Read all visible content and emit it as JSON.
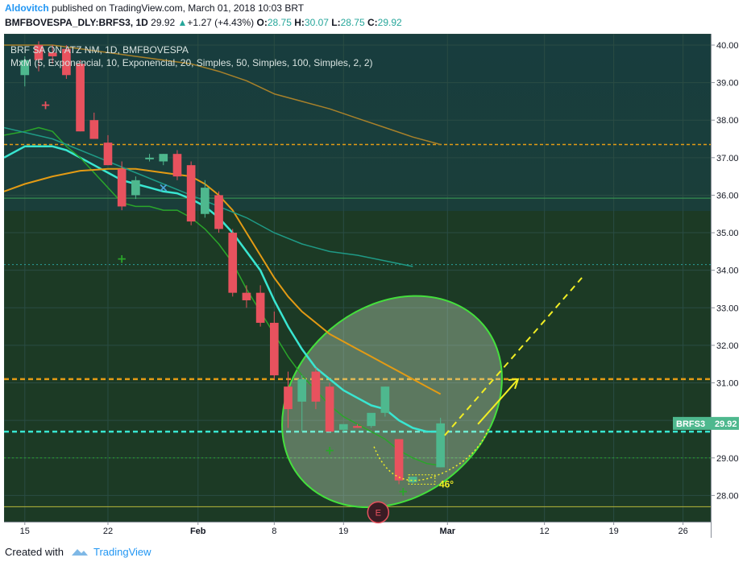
{
  "header": {
    "author": "Aldovitch",
    "published": "published on TradingView.com, March 01, 2018 10:03 BRT",
    "symbol": "BMFBOVESPA_DLY:BRFS3, 1D",
    "last": "29.92",
    "change": "+1.27 (+4.43%)",
    "o_label": "O:",
    "o": "28.75",
    "h_label": "H:",
    "h": "30.07",
    "l_label": "L:",
    "l": "28.75",
    "c_label": "C:",
    "c": "29.92"
  },
  "footer": {
    "created_with": "Created with",
    "brand": "TradingView"
  },
  "colors": {
    "panel_top": "#183d3e",
    "panel_bottom": "#1c3a25",
    "grid": "#2a4c44",
    "up": "#4eb88e",
    "down": "#e8525e",
    "ema5": "#39e6d1",
    "ema10": "#2aa62a",
    "sma20": "#e39b14",
    "sma50": "#1f9a86",
    "sma100": "#a8812a",
    "ellipse": "#44e03c",
    "arrow": "#f1ee24",
    "price_tag": "#4eb88e"
  },
  "chart_data": {
    "type": "candlestick",
    "title": "BRF SA ON ATZ NM, 1D, BMFBOVESPA",
    "indicator": "MxM (5, Exponencial, 10, Exponencial, 20, Simples, 50, Simples, 100, Simples, 2, 2)",
    "ylim": [
      27.3,
      40.3
    ],
    "yticks": [
      "40.00",
      "39.00",
      "38.00",
      "37.00",
      "36.00",
      "35.00",
      "34.00",
      "33.00",
      "32.00",
      "31.00",
      "30.00",
      "29.00",
      "28.00"
    ],
    "xlim": [
      -1.5,
      49.5
    ],
    "xticks": [
      {
        "x": 0,
        "label": "15"
      },
      {
        "x": 6,
        "label": "22"
      },
      {
        "x": 12.5,
        "label": "Feb"
      },
      {
        "x": 18,
        "label": "8"
      },
      {
        "x": 23,
        "label": "19"
      },
      {
        "x": 30.5,
        "label": "Mar"
      },
      {
        "x": 37.5,
        "label": "12"
      },
      {
        "x": 42.5,
        "label": "19"
      },
      {
        "x": 47.5,
        "label": "26"
      }
    ],
    "candles": [
      {
        "x": 0,
        "o": 39.2,
        "h": 39.7,
        "l": 38.9,
        "c": 39.6
      },
      {
        "x": 1,
        "o": 40.0,
        "h": 40.1,
        "l": 39.3,
        "c": 39.6
      },
      {
        "x": 2,
        "o": 39.8,
        "h": 40.0,
        "l": 39.5,
        "c": 39.7
      },
      {
        "x": 3,
        "o": 39.9,
        "h": 40.0,
        "l": 39.1,
        "c": 39.2
      },
      {
        "x": 4,
        "o": 39.5,
        "h": 39.6,
        "l": 37.7,
        "c": 37.7
      },
      {
        "x": 5,
        "o": 38.0,
        "h": 38.2,
        "l": 37.5,
        "c": 37.5
      },
      {
        "x": 6,
        "o": 37.4,
        "h": 37.6,
        "l": 36.8,
        "c": 36.8
      },
      {
        "x": 7,
        "o": 36.7,
        "h": 36.9,
        "l": 35.6,
        "c": 35.7
      },
      {
        "x": 8,
        "o": 36.0,
        "h": 36.5,
        "l": 35.9,
        "c": 36.4
      },
      {
        "x": 9,
        "o": 37.0,
        "h": 37.1,
        "l": 36.9,
        "c": 37.0
      },
      {
        "x": 10,
        "o": 36.9,
        "h": 37.1,
        "l": 36.8,
        "c": 37.1
      },
      {
        "x": 11,
        "o": 37.1,
        "h": 37.2,
        "l": 36.4,
        "c": 36.5
      },
      {
        "x": 12,
        "o": 36.8,
        "h": 36.9,
        "l": 35.2,
        "c": 35.3
      },
      {
        "x": 13,
        "o": 35.5,
        "h": 36.4,
        "l": 35.4,
        "c": 36.2
      },
      {
        "x": 14,
        "o": 36.0,
        "h": 36.1,
        "l": 35.0,
        "c": 35.1
      },
      {
        "x": 15,
        "o": 35.0,
        "h": 35.1,
        "l": 33.3,
        "c": 33.4
      },
      {
        "x": 16,
        "o": 33.4,
        "h": 33.6,
        "l": 33.0,
        "c": 33.2
      },
      {
        "x": 17,
        "o": 33.4,
        "h": 33.6,
        "l": 32.5,
        "c": 32.6
      },
      {
        "x": 18,
        "o": 32.6,
        "h": 32.9,
        "l": 31.1,
        "c": 31.2
      },
      {
        "x": 19,
        "o": 30.9,
        "h": 31.3,
        "l": 29.8,
        "c": 30.3
      },
      {
        "x": 20,
        "o": 30.5,
        "h": 31.2,
        "l": 29.7,
        "c": 31.1
      },
      {
        "x": 21,
        "o": 31.3,
        "h": 31.4,
        "l": 30.3,
        "c": 30.5
      },
      {
        "x": 22,
        "o": 30.9,
        "h": 31.0,
        "l": 29.7,
        "c": 29.7
      },
      {
        "x": 23,
        "o": 29.75,
        "h": 29.9,
        "l": 29.7,
        "c": 29.9
      },
      {
        "x": 24,
        "o": 29.85,
        "h": 29.9,
        "l": 29.8,
        "c": 29.8
      },
      {
        "x": 25,
        "o": 29.85,
        "h": 30.1,
        "l": 29.8,
        "c": 30.2
      },
      {
        "x": 26,
        "o": 30.2,
        "h": 30.9,
        "l": 30.1,
        "c": 30.9
      },
      {
        "x": 27,
        "o": 29.5,
        "h": 29.5,
        "l": 28.3,
        "c": 28.4
      },
      {
        "x": 28,
        "o": 28.35,
        "h": 28.5,
        "l": 28.3,
        "c": 28.5
      },
      {
        "x": 30,
        "o": 28.75,
        "h": 30.07,
        "l": 28.75,
        "c": 29.92
      }
    ],
    "series": [
      {
        "name": "MA5",
        "points": [
          [
            -1.5,
            37.0
          ],
          [
            0,
            37.3
          ],
          [
            2,
            37.3
          ],
          [
            3,
            37.2
          ],
          [
            4,
            37.0
          ],
          [
            5,
            36.8
          ],
          [
            6,
            36.6
          ],
          [
            7,
            36.4
          ],
          [
            8,
            36.3
          ],
          [
            9,
            36.2
          ],
          [
            10,
            36.1
          ],
          [
            11,
            36.05
          ],
          [
            12,
            35.9
          ],
          [
            13,
            35.7
          ],
          [
            14,
            35.4
          ],
          [
            15,
            35.0
          ],
          [
            16,
            34.5
          ],
          [
            17,
            34.0
          ],
          [
            18,
            33.2
          ],
          [
            19,
            32.5
          ],
          [
            20,
            31.9
          ],
          [
            21,
            31.4
          ],
          [
            22,
            31.1
          ],
          [
            23,
            30.8
          ],
          [
            24,
            30.6
          ],
          [
            25,
            30.4
          ],
          [
            26,
            30.3
          ],
          [
            27,
            30.0
          ],
          [
            28,
            29.8
          ],
          [
            29,
            29.7
          ],
          [
            30,
            29.7
          ]
        ]
      },
      {
        "name": "MA10",
        "points": [
          [
            -1.5,
            37.6
          ],
          [
            0,
            37.7
          ],
          [
            1,
            37.8
          ],
          [
            2,
            37.7
          ],
          [
            3,
            37.3
          ],
          [
            4,
            37.0
          ],
          [
            5,
            36.6
          ],
          [
            6,
            36.2
          ],
          [
            7,
            35.8
          ],
          [
            8,
            35.7
          ],
          [
            9,
            35.7
          ],
          [
            10,
            35.6
          ],
          [
            11,
            35.6
          ],
          [
            12,
            35.4
          ],
          [
            13,
            35.1
          ],
          [
            14,
            34.7
          ],
          [
            15,
            34.2
          ],
          [
            16,
            33.5
          ],
          [
            17,
            32.9
          ],
          [
            18,
            32.3
          ],
          [
            19,
            31.7
          ],
          [
            20,
            31.2
          ],
          [
            21,
            30.8
          ],
          [
            22,
            30.4
          ],
          [
            23,
            30.1
          ],
          [
            24,
            29.9
          ],
          [
            25,
            29.7
          ],
          [
            26,
            29.5
          ],
          [
            27,
            29.2
          ],
          [
            28,
            29.0
          ],
          [
            29,
            28.85
          ],
          [
            30,
            28.8
          ]
        ]
      },
      {
        "name": "MA20",
        "points": [
          [
            -1.5,
            36.1
          ],
          [
            0,
            36.3
          ],
          [
            2,
            36.5
          ],
          [
            4,
            36.65
          ],
          [
            6,
            36.7
          ],
          [
            8,
            36.7
          ],
          [
            10,
            36.6
          ],
          [
            12,
            36.5
          ],
          [
            13,
            36.3
          ],
          [
            14,
            36.0
          ],
          [
            15,
            35.6
          ],
          [
            16,
            35.0
          ],
          [
            17,
            34.4
          ],
          [
            18,
            33.8
          ],
          [
            19,
            33.3
          ],
          [
            20,
            32.9
          ],
          [
            21,
            32.6
          ],
          [
            22,
            32.3
          ],
          [
            23,
            32.1
          ],
          [
            24,
            31.9
          ],
          [
            25,
            31.7
          ],
          [
            26,
            31.5
          ],
          [
            27,
            31.3
          ],
          [
            28,
            31.1
          ],
          [
            29,
            30.9
          ],
          [
            30,
            30.7
          ]
        ]
      },
      {
        "name": "MA50",
        "points": [
          [
            -1.5,
            37.8
          ],
          [
            2,
            37.5
          ],
          [
            4,
            37.2
          ],
          [
            6,
            36.9
          ],
          [
            8,
            36.6
          ],
          [
            10,
            36.3
          ],
          [
            12,
            36.0
          ],
          [
            14,
            35.7
          ],
          [
            16,
            35.4
          ],
          [
            18,
            35.0
          ],
          [
            20,
            34.7
          ],
          [
            22,
            34.5
          ],
          [
            24,
            34.4
          ],
          [
            26,
            34.25
          ],
          [
            28,
            34.1
          ]
        ]
      },
      {
        "name": "MA100",
        "points": [
          [
            -1.5,
            40.0
          ],
          [
            2,
            40.0
          ],
          [
            4,
            39.9
          ],
          [
            6,
            39.8
          ],
          [
            8,
            39.7
          ],
          [
            10,
            39.6
          ],
          [
            12,
            39.5
          ],
          [
            14,
            39.3
          ],
          [
            16,
            39.05
          ],
          [
            18,
            38.7
          ],
          [
            20,
            38.5
          ],
          [
            22,
            38.3
          ],
          [
            24,
            38.05
          ],
          [
            26,
            37.8
          ],
          [
            28,
            37.55
          ],
          [
            30,
            37.35
          ]
        ]
      }
    ],
    "hlines": [
      {
        "y": 37.35,
        "color": "#e39b14",
        "style": "dash"
      },
      {
        "y": 35.92,
        "color": "#3a9f54",
        "style": "solid"
      },
      {
        "y": 34.15,
        "color": "#2aa09a",
        "style": "dot"
      },
      {
        "y": 31.1,
        "color": "#e39b14",
        "style": "thickdash"
      },
      {
        "y": 29.7,
        "color": "#39e6d1",
        "style": "thickdash"
      },
      {
        "y": 29.0,
        "color": "#2aa62a",
        "style": "dot"
      },
      {
        "y": 27.7,
        "color": "#b8b83a",
        "style": "solid"
      }
    ],
    "markers": [
      {
        "x": 1.5,
        "y": 38.4,
        "glyph": "+",
        "color": "#e8525e"
      },
      {
        "x": 7,
        "y": 34.3,
        "glyph": "+",
        "color": "#2aa62a"
      },
      {
        "x": 10,
        "y": 36.2,
        "glyph": "x",
        "color": "#4aa3d8"
      },
      {
        "x": 22,
        "y": 29.2,
        "glyph": "+",
        "color": "#2aa62a"
      },
      {
        "x": 27.3,
        "y": 28.1,
        "glyph": "+",
        "color": "#2aa62a"
      }
    ],
    "annotation_angle": "46°",
    "earnings_badge": "E",
    "price_tag": {
      "symbol": "BRFS3",
      "value": "29.92"
    }
  }
}
